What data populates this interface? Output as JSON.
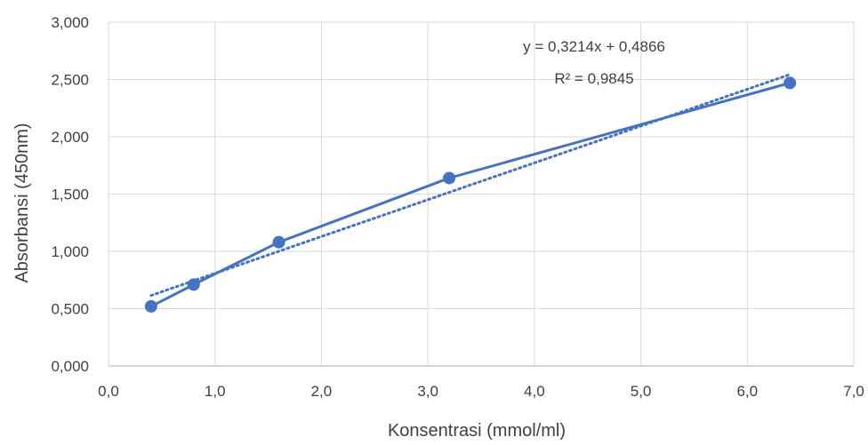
{
  "chart_data": {
    "type": "scatter",
    "xlabel": "Konsentrasi (mmol/ml)",
    "ylabel": "Absorbansi (450nm)",
    "xlim": [
      0,
      7
    ],
    "ylim": [
      0,
      3
    ],
    "x_ticks": [
      0,
      1,
      2,
      3,
      4,
      5,
      6,
      7
    ],
    "y_ticks": [
      0,
      0.5,
      1,
      1.5,
      2,
      2.5,
      3
    ],
    "x_tick_labels": [
      "0,0",
      "1,0",
      "2,0",
      "3,0",
      "4,0",
      "5,0",
      "6,0",
      "7,0"
    ],
    "y_tick_labels": [
      "0,000",
      "0,500",
      "1,000",
      "1,500",
      "2,000",
      "2,500",
      "3,000"
    ],
    "grid": true,
    "series": [
      {
        "x": [
          0.4,
          0.8,
          1.6,
          3.2,
          6.4
        ],
        "y": [
          0.52,
          0.71,
          1.08,
          1.64,
          2.47
        ],
        "color": "#4472C4",
        "style": "line-with-markers"
      },
      {
        "trendline": "linear",
        "slope": 0.3214,
        "intercept": 0.4866,
        "x_range": [
          0.4,
          6.4
        ],
        "color": "#4472C4",
        "style": "dotted"
      }
    ],
    "annotations": {
      "equation": "y = 0,3214x + 0,4866",
      "r_squared": "R² = 0,9845"
    }
  }
}
